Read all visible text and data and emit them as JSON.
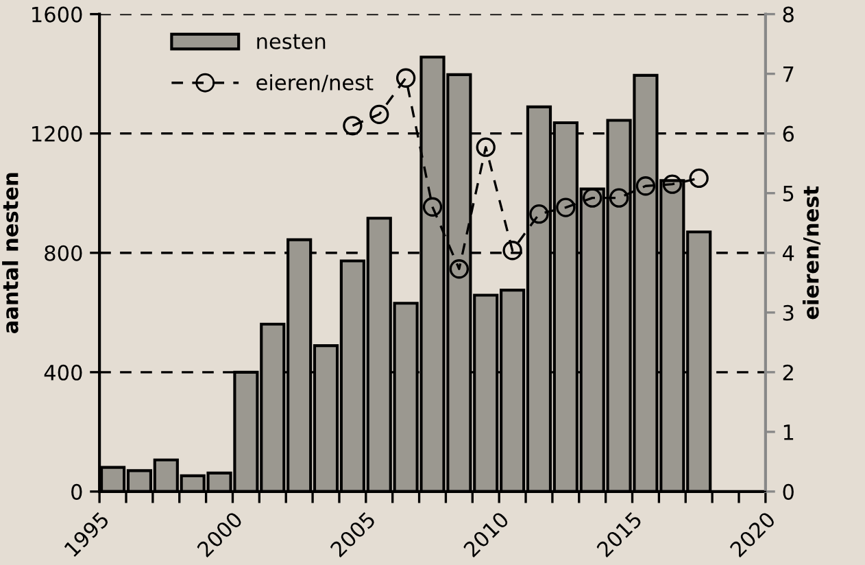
{
  "chart_data": {
    "type": "bar",
    "ylabel": "aantal nesten",
    "y2label": "eieren/nest",
    "x": [
      1995.5,
      1996.5,
      1997.5,
      1998.5,
      1999.5,
      2000.5,
      2001.5,
      2002.5,
      2003.5,
      2004.5,
      2005.5,
      2006.5,
      2007.5,
      2008.5,
      2009.5,
      2010.5,
      2011.5,
      2012.5,
      2013.5,
      2014.5,
      2015.5,
      2016.5,
      2017.5
    ],
    "series": [
      {
        "name": "nesten",
        "color": "#9b9890",
        "values": [
          81,
          70,
          106,
          53,
          62,
          400,
          561,
          844,
          489,
          773,
          916,
          631,
          1456,
          1397,
          658,
          675,
          1289,
          1236,
          1014,
          1244,
          1395,
          1042,
          870
        ]
      },
      {
        "name": "eieren/nest",
        "type": "line",
        "axis": "y2",
        "color": "#000000",
        "marker": "circle",
        "line_style": "dashed",
        "values": [
          null,
          null,
          null,
          null,
          null,
          null,
          null,
          null,
          null,
          6.13,
          6.32,
          6.93,
          4.77,
          3.73,
          5.77,
          4.04,
          4.65,
          4.76,
          4.92,
          4.92,
          5.12,
          5.15,
          5.25
        ]
      }
    ],
    "xlim": [
      1995,
      2020
    ],
    "xticks": [
      1995,
      {
        "value": 1996,
        "label": null
      },
      {
        "value": 1997,
        "label": null
      },
      {
        "value": 1998,
        "label": null
      },
      {
        "value": 1999,
        "label": null
      },
      2000,
      {
        "value": 2001,
        "label": null
      },
      {
        "value": 2002,
        "label": null
      },
      {
        "value": 2003,
        "label": null
      },
      {
        "value": 2004,
        "label": null
      },
      2005,
      {
        "value": 2006,
        "label": null
      },
      {
        "value": 2007,
        "label": null
      },
      {
        "value": 2008,
        "label": null
      },
      {
        "value": 2009,
        "label": null
      },
      2010,
      {
        "value": 2011,
        "label": null
      },
      {
        "value": 2012,
        "label": null
      },
      {
        "value": 2013,
        "label": null
      },
      {
        "value": 2014,
        "label": null
      },
      2015,
      {
        "value": 2016,
        "label": null
      },
      {
        "value": 2017,
        "label": null
      },
      {
        "value": 2018,
        "label": null
      },
      {
        "value": 2019,
        "label": null
      },
      2020
    ],
    "ylim": [
      0,
      1600
    ],
    "yticks": [
      0,
      400,
      800,
      1200,
      1600
    ],
    "y2lim": [
      0,
      8
    ],
    "y2ticks": [
      0,
      1,
      2,
      3,
      4,
      5,
      6,
      7,
      8
    ],
    "grid": "y",
    "legend": "top left"
  }
}
